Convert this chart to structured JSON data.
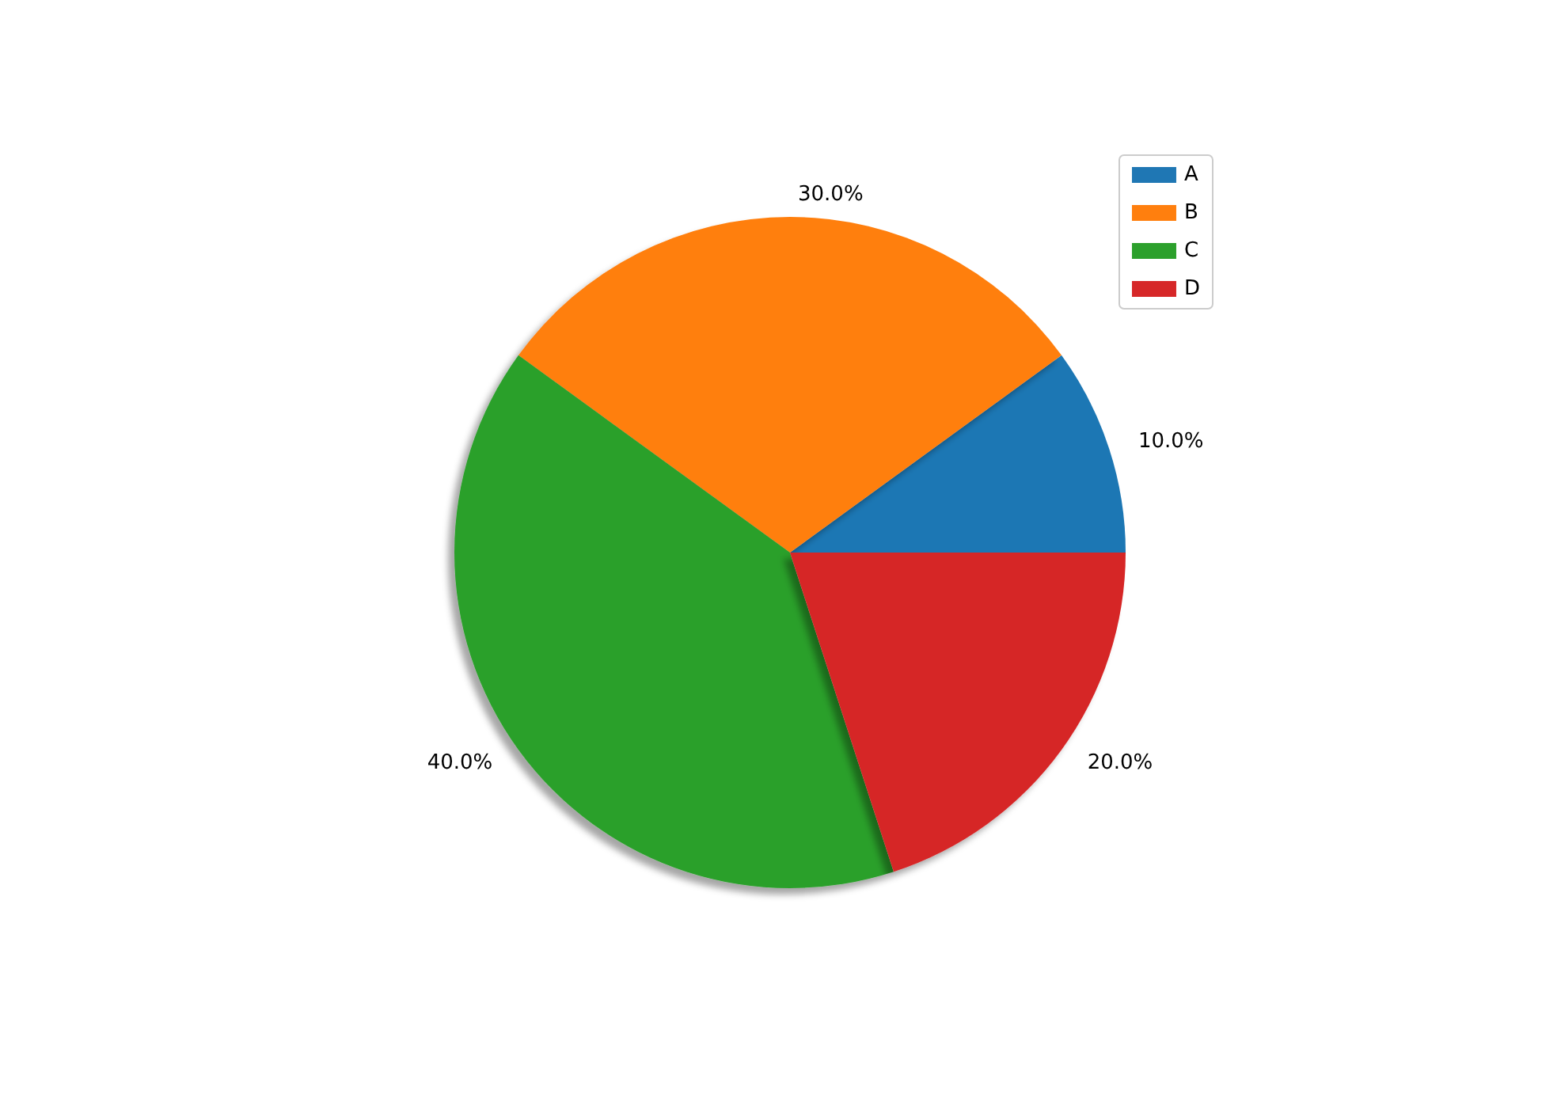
{
  "chart_data": {
    "type": "pie",
    "categories": [
      "A",
      "B",
      "C",
      "D"
    ],
    "values": [
      10,
      30,
      40,
      20
    ],
    "colors": [
      "#1f77b4",
      "#ff7f0e",
      "#2ca02c",
      "#d62728"
    ],
    "value_labels": [
      "10.0%",
      "30.0%",
      "40.0%",
      "20.0%"
    ],
    "legend": "top right"
  }
}
